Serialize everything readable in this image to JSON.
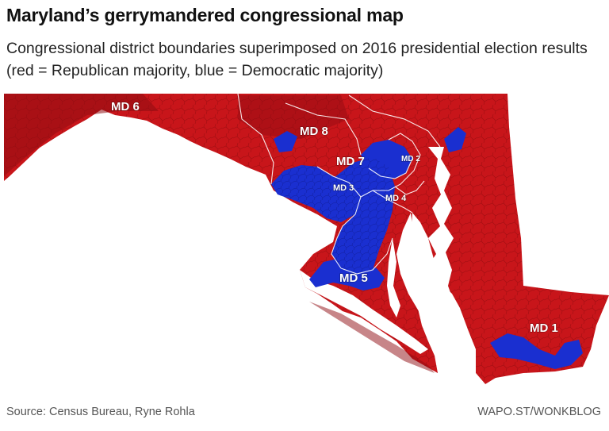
{
  "header": {
    "title": "Maryland’s gerrymandered congressional map",
    "subtitle": "Congressional district boundaries superimposed on 2016 presidential election results (red = Republican majority, blue = Democratic majority)"
  },
  "map": {
    "colors": {
      "republican": "#c8151a",
      "republican_dark": "#8f0c12",
      "democratic": "#1a2fd0",
      "democratic_dark": "#0d1a8a",
      "water": "#ffffff"
    },
    "districts": [
      {
        "id": "md1",
        "label": "MD 1"
      },
      {
        "id": "md3",
        "label": "MD 3"
      },
      {
        "id": "md4",
        "label": "MD 4"
      },
      {
        "id": "md5",
        "label": "MD 5"
      },
      {
        "id": "md6",
        "label": "MD 6"
      },
      {
        "id": "md7",
        "label": "MD 7"
      },
      {
        "id": "md8",
        "label": "MD 8"
      },
      {
        "id": "md2",
        "label": "MD 2"
      }
    ]
  },
  "footer": {
    "source": "Source: Census Bureau, Ryne Rohla",
    "credit": "WAPO.ST/WONKBLOG"
  }
}
